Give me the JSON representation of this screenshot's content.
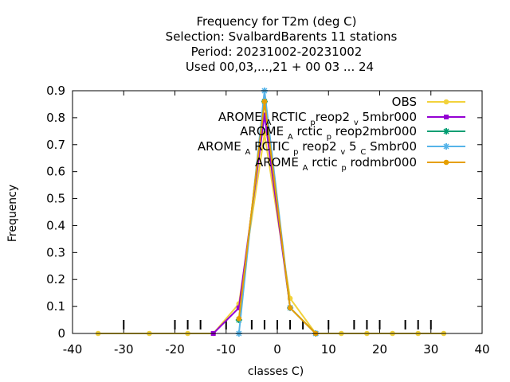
{
  "chart_data": {
    "type": "line",
    "title_lines": [
      "Frequency  for T2m (deg C)",
      "Selection: SvalbardBarents     11 stations",
      "Period: 20231002-20231002",
      "Used  00,03,...,21  + 00 03 ... 24"
    ],
    "xlabel": "classes C)",
    "ylabel": "Frequency",
    "xlim": [
      -40,
      40
    ],
    "ylim": [
      0,
      0.9
    ],
    "xticks": [
      -40,
      -30,
      -20,
      -10,
      0,
      10,
      20,
      30,
      40
    ],
    "yticks": [
      0,
      0.1,
      0.2,
      0.3,
      0.4,
      0.5,
      0.6,
      0.7,
      0.8,
      0.9
    ],
    "class_markers": [
      -30,
      -20,
      -17.5,
      -15,
      -10,
      -5,
      -2.5,
      0,
      2.5,
      5,
      10,
      15,
      17.5,
      20,
      25,
      27.5,
      30
    ],
    "legend_position": "top-right",
    "series": [
      {
        "name": "OBS",
        "name_parts": [
          {
            "t": "OBS"
          }
        ],
        "color": "#f2d23b",
        "marker": "circle",
        "x": [
          -35,
          -25,
          -17.5,
          -12.5,
          -7.5,
          -2.5,
          2.5,
          7.5,
          12.5,
          17.5,
          22.5,
          27.5,
          32.5
        ],
        "y": [
          0,
          0,
          0,
          0,
          0.11,
          0.74,
          0.13,
          0,
          0,
          0,
          0,
          0,
          0
        ]
      },
      {
        "name": "AROME_ARCTIC_preop2_v5mbr000",
        "name_parts": [
          {
            "t": "AROME "
          },
          {
            "t": "A",
            "s": 1
          },
          {
            "t": "RCTIC "
          },
          {
            "t": "p",
            "s": 1
          },
          {
            "t": "reop2 "
          },
          {
            "t": "v",
            "s": 1
          },
          {
            "t": " 5mbr000"
          }
        ],
        "color": "#9400d3",
        "marker": "square",
        "x": [
          -12.5,
          -7.5,
          -2.5,
          2.5,
          7.5
        ],
        "y": [
          0,
          0.095,
          0.81,
          0.095,
          0
        ]
      },
      {
        "name": "AROME_Arctic_preop2mbr000",
        "name_parts": [
          {
            "t": "AROME "
          },
          {
            "t": "A",
            "s": 1
          },
          {
            "t": " rctic "
          },
          {
            "t": "p",
            "s": 1
          },
          {
            "t": " reop2mbr000"
          }
        ],
        "color": "#009e73",
        "marker": "star",
        "x": [
          -7.5,
          -2.5,
          2.5,
          7.5
        ],
        "y": [
          0.05,
          0.86,
          0.095,
          0
        ]
      },
      {
        "name": "AROME_ARCTIC_preop2_v5_CSmbr00",
        "name_parts": [
          {
            "t": "AROME "
          },
          {
            "t": "A",
            "s": 1
          },
          {
            "t": " RCTIC "
          },
          {
            "t": "p",
            "s": 1
          },
          {
            "t": " reop2 "
          },
          {
            "t": "v",
            "s": 1
          },
          {
            "t": " 5 "
          },
          {
            "t": "C",
            "s": 1
          },
          {
            "t": " Smbr00"
          }
        ],
        "color": "#56b4e9",
        "marker": "star",
        "x": [
          -7.5,
          -2.5,
          2.5,
          7.5
        ],
        "y": [
          0,
          0.9,
          0.095,
          0
        ]
      },
      {
        "name": "AROME_Arctic_prodmbr000",
        "name_parts": [
          {
            "t": "AROME "
          },
          {
            "t": "A",
            "s": 1
          },
          {
            "t": " rctic "
          },
          {
            "t": "p",
            "s": 1
          },
          {
            "t": " rodmbr000"
          }
        ],
        "color": "#e69f00",
        "marker": "circle",
        "x": [
          -7.5,
          -2.5,
          2.5,
          7.5
        ],
        "y": [
          0.055,
          0.86,
          0.095,
          0
        ]
      }
    ]
  }
}
